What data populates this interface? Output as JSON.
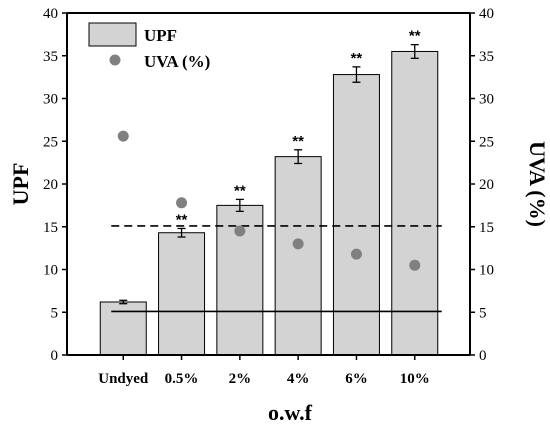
{
  "chart_data": {
    "type": "bar",
    "title": "",
    "xlabel": "o.w.f",
    "ylabel": "UPF",
    "y2label": "UVA (%)",
    "categories": [
      "Undyed",
      "0.5%",
      "2%",
      "4%",
      "6%",
      "10%"
    ],
    "ylim": [
      0,
      40
    ],
    "y2lim": [
      0,
      40
    ],
    "yticks": [
      0,
      5,
      10,
      15,
      20,
      25,
      30,
      35,
      40
    ],
    "series": [
      {
        "name": "UPF",
        "kind": "bar",
        "values": [
          6.2,
          14.3,
          17.5,
          23.2,
          32.8,
          35.5
        ],
        "errors": [
          0.2,
          0.5,
          0.7,
          0.8,
          0.9,
          0.8
        ],
        "significance": [
          "",
          "**",
          "**",
          "**",
          "**",
          "**"
        ],
        "color": "#d3d3d3"
      },
      {
        "name": "UVA (%)",
        "kind": "scatter",
        "axis": "right",
        "values": [
          25.6,
          17.8,
          14.5,
          13.0,
          11.8,
          10.5
        ],
        "color": "#808080"
      }
    ],
    "reference_lines": [
      {
        "style": "dashed",
        "value": 15.1
      },
      {
        "style": "solid",
        "value": 5.1
      }
    ],
    "legend_position": "top-left",
    "grid": false
  }
}
